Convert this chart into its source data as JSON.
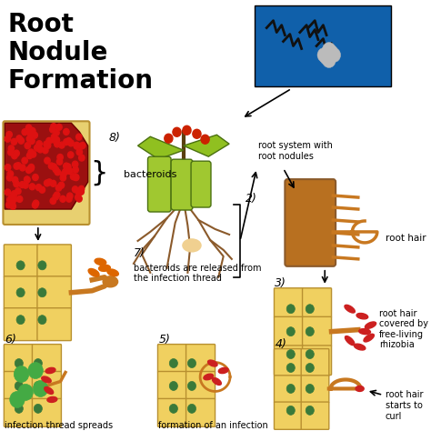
{
  "title": "Root\nNodule\nFormation",
  "background_color": "#ffffff",
  "title_fontsize": 20,
  "cell_color": "#f0d060",
  "cell_edge_color": "#b89030",
  "nucleus_color": "#3a7a3a",
  "bacteria_red": "#cc2020",
  "bacteria_orange": "#dd6600",
  "root_color": "#c87820",
  "root_dark": "#8B5A2B",
  "green_bacteroid": "#44aa44",
  "plant_stem": "#5a4010",
  "plant_leaf": "#90c020",
  "plant_pod": "#a0c830",
  "berry_color": "#cc2200",
  "blue_bg": "#1060aa",
  "annotations": {
    "root_system": "root system with\nroot nodules",
    "root_hair": "root hair",
    "step3_desc": "root hair\ncovered by\nfree-living\nrhizobia",
    "step4_desc": "root hair\nstarts to\ncurl",
    "step5_desc": "formation of an infection",
    "step6_desc": "infection thread spreads",
    "step7_desc": "bacteroids are released from\nthe infection thread",
    "bacteroids": "bacteroids"
  },
  "step_labels": [
    "2)",
    "3)",
    "4)",
    "5)",
    "6)",
    "7)",
    "8)"
  ]
}
